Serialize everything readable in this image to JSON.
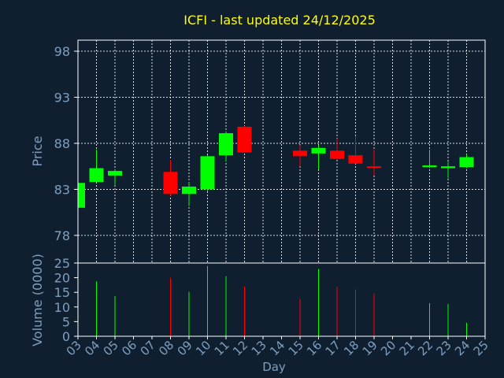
{
  "chart_data": {
    "type": "candlestick",
    "title": "ICFI - last updated 24/12/2025",
    "xlabel": "Day",
    "price_panel": {
      "ylabel": "Price",
      "ylim": [
        75,
        99.2
      ],
      "yticks": [
        78,
        83,
        88,
        93,
        98
      ]
    },
    "volume_panel": {
      "ylabel": "Volume (0000)",
      "ylim": [
        0,
        25
      ],
      "yticks": [
        0,
        5,
        10,
        15,
        20,
        25
      ]
    },
    "x_ticks": [
      "03",
      "04",
      "05",
      "06",
      "07",
      "08",
      "09",
      "10",
      "11",
      "12",
      "13",
      "14",
      "15",
      "16",
      "17",
      "18",
      "19",
      "20",
      "21",
      "22",
      "23",
      "24",
      "25"
    ],
    "grid": true,
    "colors": {
      "background": "#0f1f30",
      "panel_border": "#ffffff",
      "grid": "#ffffff",
      "text": "#7f9fbf",
      "title": "#ffff00",
      "up": "#00ff00",
      "down": "#ff0000",
      "flat": "#ff0000"
    },
    "candles": [
      {
        "day": 3,
        "open": 81.0,
        "high": 83.9,
        "low": 81.0,
        "close": 83.7,
        "volume": 0
      },
      {
        "day": 4,
        "open": 83.8,
        "high": 87.3,
        "low": 83.8,
        "close": 85.3,
        "volume": 18.7
      },
      {
        "day": 5,
        "open": 84.5,
        "high": 85.2,
        "low": 83.5,
        "close": 85.0,
        "volume": 13.7
      },
      {
        "day": 8,
        "open": 84.9,
        "high": 86.2,
        "low": 82.3,
        "close": 82.5,
        "volume": 20.0
      },
      {
        "day": 9,
        "open": 82.5,
        "high": 83.8,
        "low": 81.2,
        "close": 83.3,
        "volume": 15.2
      },
      {
        "day": 10,
        "open": 83.0,
        "high": 86.7,
        "low": 82.8,
        "close": 86.6,
        "volume": 24.0
      },
      {
        "day": 11,
        "open": 86.7,
        "high": 89.3,
        "low": 86.0,
        "close": 89.1,
        "volume": 20.5
      },
      {
        "day": 12,
        "open": 89.8,
        "high": 89.9,
        "low": 87.0,
        "close": 87.0,
        "volume": 17.0
      },
      {
        "day": 15,
        "open": 87.2,
        "high": 87.8,
        "low": 85.5,
        "close": 86.6,
        "volume": 12.8
      },
      {
        "day": 16,
        "open": 86.9,
        "high": 87.8,
        "low": 85.2,
        "close": 87.5,
        "volume": 23.0
      },
      {
        "day": 17,
        "open": 87.2,
        "high": 88.5,
        "low": 86.2,
        "close": 86.3,
        "volume": 16.8
      },
      {
        "day": 18,
        "open": 86.7,
        "high": 88.8,
        "low": 85.8,
        "close": 85.8,
        "volume": 16.0
      },
      {
        "day": 19,
        "open": 85.5,
        "high": 87.3,
        "low": 84.5,
        "close": 85.4,
        "volume": 14.5
      },
      {
        "day": 22,
        "open": 85.4,
        "high": 87.3,
        "low": 85.3,
        "close": 85.6,
        "volume": 11.3
      },
      {
        "day": 23,
        "open": 85.3,
        "high": 86.0,
        "low": 84.2,
        "close": 85.5,
        "volume": 11.0
      },
      {
        "day": 24,
        "open": 85.4,
        "high": 86.8,
        "low": 85.3,
        "close": 86.5,
        "volume": 4.6
      }
    ]
  }
}
